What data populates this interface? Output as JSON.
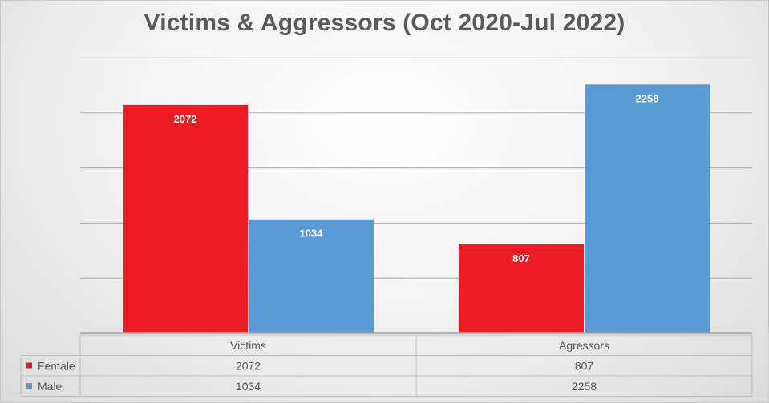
{
  "title": "Victims & Aggressors (Oct 2020-Jul 2022)",
  "chart_data": {
    "type": "bar",
    "title": "Victims & Aggressors (Oct 2020-Jul 2022)",
    "categories": [
      "Victims",
      "Agressors"
    ],
    "series": [
      {
        "name": "Female",
        "values": [
          2072,
          807
        ],
        "color": "#ED1C24"
      },
      {
        "name": "Male",
        "values": [
          1034,
          2258
        ],
        "color": "#5B9BD5"
      }
    ],
    "ylim": [
      0,
      2500
    ],
    "grid": true,
    "legend": "data-table-left",
    "data_table": true
  }
}
